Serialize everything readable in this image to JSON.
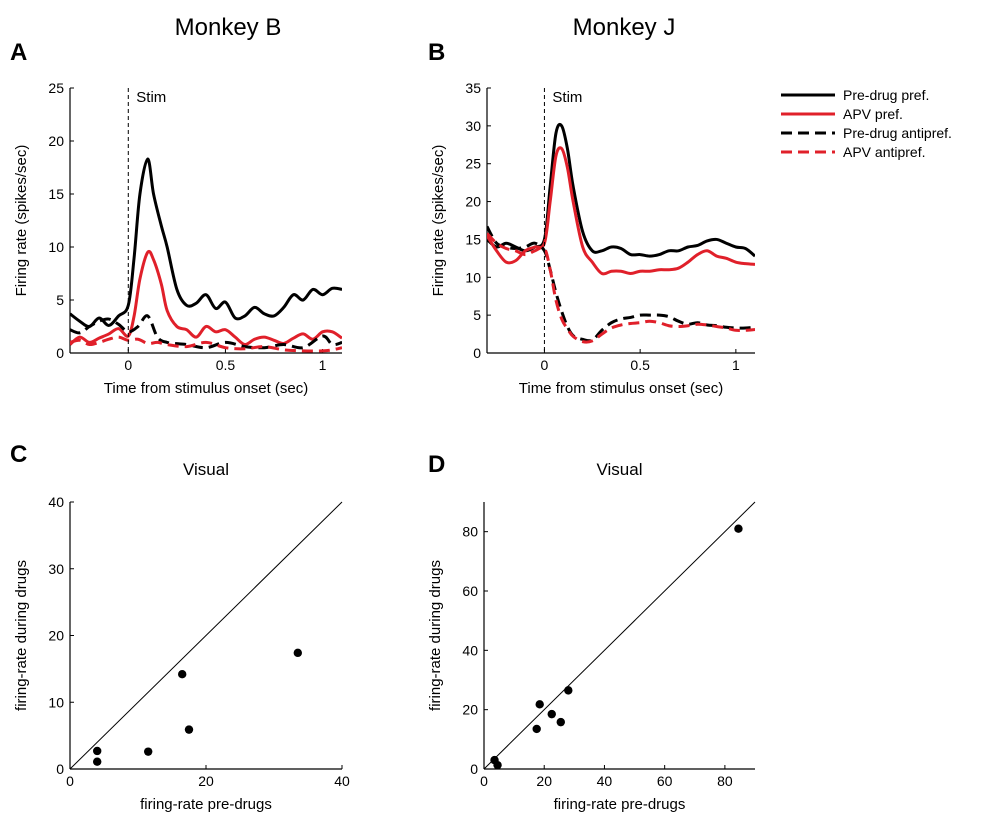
{
  "titles": {
    "left": "Monkey B",
    "right": "Monkey J"
  },
  "panels": {
    "A": "A",
    "B": "B",
    "C": "C",
    "D": "D"
  },
  "colors": {
    "black": "#000000",
    "red": "#e0202a"
  },
  "legend": [
    {
      "label": "Pre-drug pref.",
      "color": "#000000",
      "style": "solid"
    },
    {
      "label": "APV pref.",
      "color": "#e0202a",
      "style": "solid"
    },
    {
      "label": "Pre-drug antipref.",
      "color": "#000000",
      "style": "dashed"
    },
    {
      "label": "APV antipref.",
      "color": "#e0202a",
      "style": "dashed"
    }
  ],
  "chart_data": [
    {
      "id": "A",
      "type": "line",
      "title": "",
      "xlabel": "Time from stimulus onset (sec)",
      "ylabel": "Firing rate (spikes/sec)",
      "xlim": [
        -0.3,
        1.1
      ],
      "ylim": [
        0,
        25
      ],
      "xticks": [
        0,
        0.5,
        1
      ],
      "yticks": [
        0,
        5,
        10,
        15,
        20,
        25
      ],
      "xtick_labels": [
        "0",
        "0.5",
        "1"
      ],
      "ytick_labels": [
        "0",
        "5",
        "10",
        "15",
        "20",
        "25"
      ],
      "stim_marker": {
        "x": 0,
        "label": "Stim"
      },
      "series": [
        {
          "name": "Pre-drug pref.",
          "color": "#000000",
          "dashed": false,
          "x": [
            -0.3,
            -0.25,
            -0.2,
            -0.15,
            -0.1,
            -0.05,
            0,
            0.03,
            0.06,
            0.1,
            0.13,
            0.17,
            0.2,
            0.25,
            0.3,
            0.35,
            0.4,
            0.45,
            0.5,
            0.55,
            0.6,
            0.65,
            0.7,
            0.75,
            0.8,
            0.85,
            0.9,
            0.95,
            1.0,
            1.05,
            1.1
          ],
          "y": [
            3.7,
            3.0,
            2.5,
            3.3,
            2.6,
            3.5,
            4.5,
            9,
            15,
            18.3,
            15,
            12,
            10,
            6,
            4.5,
            4.7,
            5.5,
            4.2,
            4.8,
            3.3,
            3.5,
            4.3,
            3.7,
            3.5,
            4.3,
            5.5,
            5.0,
            6.0,
            5.5,
            6.1,
            6.0
          ]
        },
        {
          "name": "APV pref.",
          "color": "#e0202a",
          "dashed": false,
          "x": [
            -0.3,
            -0.25,
            -0.2,
            -0.15,
            -0.1,
            -0.05,
            0,
            0.03,
            0.06,
            0.1,
            0.13,
            0.17,
            0.2,
            0.25,
            0.3,
            0.35,
            0.4,
            0.45,
            0.5,
            0.55,
            0.6,
            0.65,
            0.7,
            0.75,
            0.8,
            0.85,
            0.9,
            0.95,
            1.0,
            1.05,
            1.1
          ],
          "y": [
            0.8,
            1.5,
            1.0,
            1.4,
            1.8,
            2.3,
            1.6,
            3.5,
            7,
            9.5,
            8.8,
            6.5,
            4,
            2.5,
            2.2,
            1.5,
            2.5,
            2.0,
            2.2,
            1.5,
            0.8,
            1.3,
            1.5,
            1.2,
            0.9,
            1.4,
            1.8,
            1.3,
            2.0,
            2.0,
            1.4
          ]
        },
        {
          "name": "Pre-drug antipref.",
          "color": "#000000",
          "dashed": true,
          "x": [
            -0.3,
            -0.25,
            -0.2,
            -0.15,
            -0.1,
            -0.05,
            0,
            0.05,
            0.1,
            0.15,
            0.2,
            0.3,
            0.4,
            0.5,
            0.6,
            0.7,
            0.8,
            0.9,
            1.0,
            1.05,
            1.1
          ],
          "y": [
            2.2,
            1.9,
            2.5,
            3.0,
            3.2,
            2.7,
            2.0,
            2.5,
            3.5,
            1.5,
            1.0,
            0.8,
            0.5,
            1.0,
            0.6,
            0.5,
            0.8,
            0.5,
            1.6,
            0.8,
            1.0
          ]
        },
        {
          "name": "APV antipref.",
          "color": "#e0202a",
          "dashed": true,
          "x": [
            -0.3,
            -0.25,
            -0.2,
            -0.15,
            -0.1,
            -0.05,
            0,
            0.05,
            0.1,
            0.15,
            0.2,
            0.3,
            0.4,
            0.5,
            0.6,
            0.7,
            0.8,
            0.9,
            1.0,
            1.05,
            1.1
          ],
          "y": [
            1.0,
            1.2,
            0.8,
            1.0,
            1.3,
            1.5,
            1.2,
            1.3,
            0.9,
            1.0,
            0.8,
            0.6,
            1.0,
            0.5,
            0.4,
            0.6,
            0.3,
            0.2,
            0.2,
            0.3,
            0.5
          ]
        }
      ]
    },
    {
      "id": "B",
      "type": "line",
      "title": "",
      "xlabel": "Time from stimulus onset (sec)",
      "ylabel": "Firing rate (spikes/sec)",
      "xlim": [
        -0.3,
        1.1
      ],
      "ylim": [
        0,
        35
      ],
      "xticks": [
        0,
        0.5,
        1
      ],
      "yticks": [
        0,
        5,
        10,
        15,
        20,
        25,
        30,
        35
      ],
      "xtick_labels": [
        "0",
        "0.5",
        "1"
      ],
      "ytick_labels": [
        "0",
        "5",
        "10",
        "15",
        "20",
        "25",
        "30",
        "35"
      ],
      "stim_marker": {
        "x": 0,
        "label": "Stim"
      },
      "series": [
        {
          "name": "Pre-drug pref.",
          "color": "#000000",
          "dashed": false,
          "x": [
            -0.3,
            -0.25,
            -0.2,
            -0.15,
            -0.1,
            -0.05,
            0,
            0.03,
            0.06,
            0.09,
            0.12,
            0.15,
            0.2,
            0.25,
            0.3,
            0.35,
            0.4,
            0.45,
            0.5,
            0.55,
            0.6,
            0.65,
            0.7,
            0.75,
            0.8,
            0.85,
            0.9,
            0.95,
            1.0,
            1.05,
            1.1
          ],
          "y": [
            15,
            14,
            14.5,
            14,
            13.5,
            14,
            15,
            22,
            29,
            30,
            27,
            22,
            16,
            13.5,
            13.5,
            14,
            13.8,
            13,
            13,
            12.8,
            13,
            13.5,
            13.5,
            14,
            14.2,
            14.8,
            15,
            14.5,
            14,
            13.8,
            12.8
          ]
        },
        {
          "name": "APV pref.",
          "color": "#e0202a",
          "dashed": false,
          "x": [
            -0.3,
            -0.25,
            -0.2,
            -0.15,
            -0.1,
            -0.05,
            0,
            0.03,
            0.06,
            0.09,
            0.12,
            0.15,
            0.2,
            0.25,
            0.3,
            0.35,
            0.4,
            0.45,
            0.5,
            0.55,
            0.6,
            0.65,
            0.7,
            0.75,
            0.8,
            0.85,
            0.9,
            0.95,
            1.0,
            1.05,
            1.1
          ],
          "y": [
            15.5,
            13.5,
            12,
            12.2,
            13.5,
            14,
            14.5,
            20,
            26,
            27,
            24.5,
            20,
            14,
            12,
            10.5,
            10.8,
            10.8,
            10.5,
            10.8,
            10.8,
            11,
            11,
            11.2,
            12,
            13,
            13.5,
            12.8,
            12.5,
            12,
            11.8,
            11.7
          ]
        },
        {
          "name": "Pre-drug antipref.",
          "color": "#000000",
          "dashed": true,
          "x": [
            -0.3,
            -0.25,
            -0.2,
            -0.15,
            -0.1,
            -0.05,
            0,
            0.03,
            0.06,
            0.09,
            0.12,
            0.15,
            0.2,
            0.25,
            0.3,
            0.35,
            0.4,
            0.45,
            0.5,
            0.55,
            0.6,
            0.65,
            0.7,
            0.75,
            0.8,
            0.85,
            0.9,
            0.95,
            1.0,
            1.05,
            1.1
          ],
          "y": [
            16.7,
            14.5,
            14,
            13.8,
            14,
            14.5,
            13.5,
            11,
            8,
            5.5,
            3.5,
            2.3,
            1.8,
            1.7,
            3,
            4,
            4.5,
            4.7,
            5,
            5,
            5,
            4.8,
            4.2,
            3.8,
            4,
            3.7,
            3.6,
            3.4,
            3.3,
            3.3,
            3.4
          ]
        },
        {
          "name": "APV antipref.",
          "color": "#e0202a",
          "dashed": true,
          "x": [
            -0.3,
            -0.25,
            -0.2,
            -0.15,
            -0.1,
            -0.05,
            0,
            0.03,
            0.06,
            0.09,
            0.12,
            0.15,
            0.2,
            0.25,
            0.3,
            0.35,
            0.4,
            0.45,
            0.5,
            0.55,
            0.6,
            0.65,
            0.7,
            0.75,
            0.8,
            0.85,
            0.9,
            0.95,
            1.0,
            1.05,
            1.1
          ],
          "y": [
            15.8,
            14.5,
            13.8,
            13.5,
            13,
            13.5,
            13.8,
            11,
            7,
            4.5,
            3.2,
            2.2,
            1.5,
            1.6,
            2.5,
            3.3,
            3.7,
            3.9,
            4.0,
            4.2,
            4.0,
            3.6,
            3.5,
            3.6,
            3.8,
            3.7,
            3.5,
            3.3,
            3.0,
            3.0,
            3.1
          ]
        }
      ]
    },
    {
      "id": "C",
      "type": "scatter",
      "title": "Visual",
      "xlabel": "firing-rate pre-drugs",
      "ylabel": "firing-rate during drugs",
      "xlim": [
        0,
        40
      ],
      "ylim": [
        0,
        40
      ],
      "xticks": [
        0,
        20,
        40
      ],
      "yticks": [
        0,
        10,
        20,
        30,
        40
      ],
      "xtick_labels": [
        "0",
        "20",
        "40"
      ],
      "ytick_labels": [
        "0",
        "10",
        "20",
        "30",
        "40"
      ],
      "unity_line": true,
      "points": {
        "x": [
          4,
          4,
          11.5,
          16.5,
          17.5,
          33.5
        ],
        "y": [
          1.1,
          2.7,
          2.6,
          14.2,
          5.9,
          17.4
        ]
      }
    },
    {
      "id": "D",
      "type": "scatter",
      "title": "Visual",
      "xlabel": "firing-rate pre-drugs",
      "ylabel": "firing-rate during drugs",
      "xlim": [
        0,
        90
      ],
      "ylim": [
        0,
        90
      ],
      "xticks": [
        0,
        20,
        40,
        60,
        80
      ],
      "yticks": [
        0,
        20,
        40,
        60,
        80
      ],
      "xtick_labels": [
        "0",
        "20",
        "40",
        "60",
        "80"
      ],
      "ytick_labels": [
        "0",
        "20",
        "40",
        "60",
        "80"
      ],
      "unity_line": true,
      "points": {
        "x": [
          3.5,
          4.5,
          17.5,
          18.5,
          22.5,
          25.5,
          28,
          84.5
        ],
        "y": [
          3.0,
          1.3,
          13.5,
          21.8,
          18.5,
          15.8,
          26.5,
          81
        ]
      }
    }
  ]
}
